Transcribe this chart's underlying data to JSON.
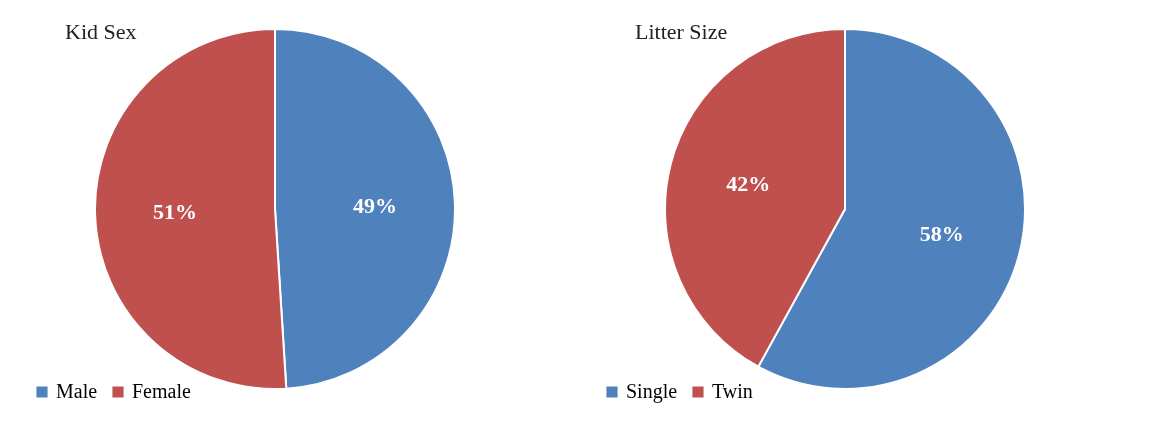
{
  "chart_data": [
    {
      "type": "pie",
      "title": "Kid Sex",
      "categories": [
        "Male",
        "Female"
      ],
      "values": [
        49,
        51
      ],
      "colors": [
        "#4f81bd",
        "#c0504d"
      ],
      "value_labels": [
        "49%",
        "51%"
      ],
      "legend": "bottom left"
    },
    {
      "type": "pie",
      "title": "Litter Size",
      "categories": [
        "Single",
        "Twin"
      ],
      "values": [
        58,
        42
      ],
      "colors": [
        "#4f81bd",
        "#c0504d"
      ],
      "value_labels": [
        "58%",
        "42%"
      ],
      "legend": "bottom left"
    }
  ]
}
